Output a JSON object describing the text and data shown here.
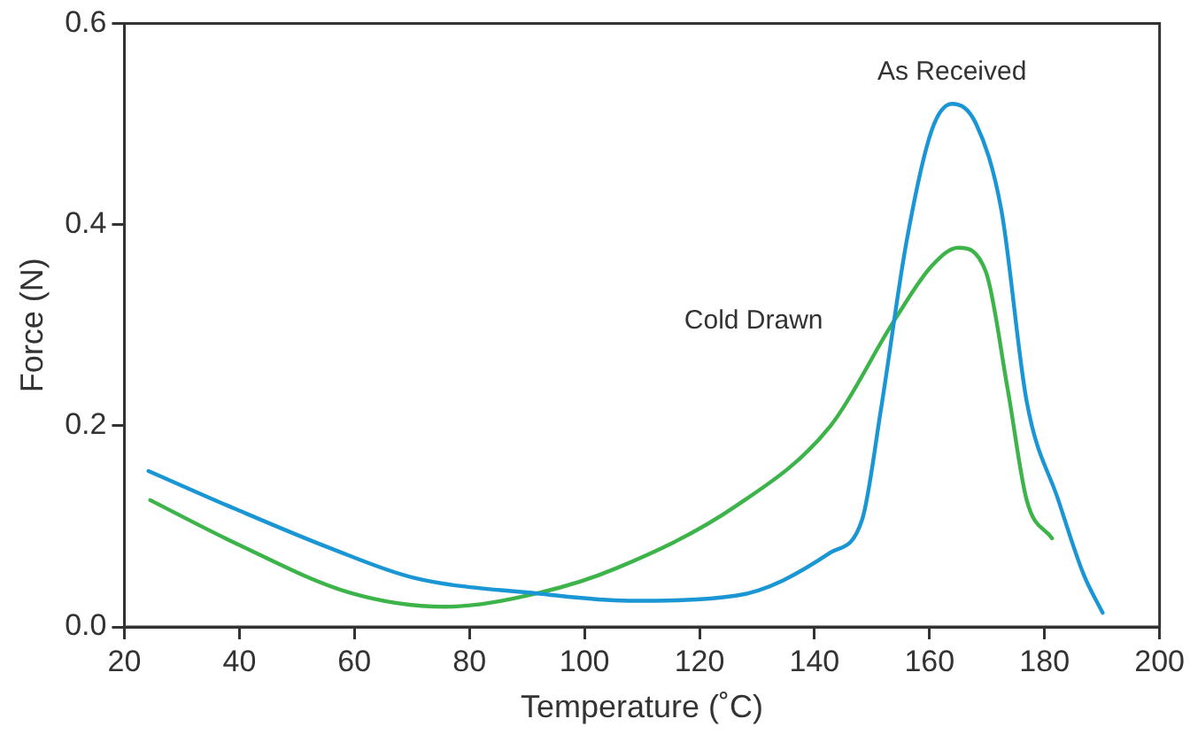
{
  "chart_data": {
    "type": "line",
    "xlabel": "Temperature (˚C)",
    "ylabel": "Force (N)",
    "xlim": [
      20,
      200
    ],
    "xticks": [
      20,
      40,
      60,
      80,
      100,
      120,
      140,
      160,
      180,
      200
    ],
    "ylim": [
      0,
      0.6
    ],
    "yticks": [
      {
        "value": 0,
        "label": "0.0"
      },
      {
        "value": 0.2,
        "label": "0.2"
      },
      {
        "value": 0.4,
        "label": "0.4"
      },
      {
        "value": 0.6,
        "label": "0.6"
      }
    ],
    "grid": false,
    "legend": false,
    "marker": "none",
    "line_style": "solid",
    "series": [
      {
        "name": "As Received",
        "color": "#1a96d4",
        "x": [
          24.2,
          39.4,
          55.9,
          70.2,
          92.2,
          107.6,
          126.3,
          142.8,
          148.3,
          151.6,
          156,
          160.4,
          163.9,
          168.1,
          172.5,
          176.9,
          182.4,
          186.8,
          190.1
        ],
        "values": [
          0.155,
          0.117,
          0.078,
          0.049,
          0.033,
          0.026,
          0.031,
          0.074,
          0.107,
          0.218,
          0.383,
          0.494,
          0.52,
          0.5,
          0.414,
          0.224,
          0.126,
          0.052,
          0.014
        ]
      },
      {
        "name": "Cold Drawn",
        "color": "#3cb44a",
        "x": [
          24.5,
          39.4,
          59.2,
          75.7,
          92.2,
          105.4,
          126.3,
          142.8,
          153.8,
          160.4,
          165,
          169.8,
          173.6,
          176.9,
          181.3
        ],
        "values": [
          0.126,
          0.083,
          0.034,
          0.02,
          0.034,
          0.058,
          0.12,
          0.2,
          0.304,
          0.359,
          0.377,
          0.353,
          0.236,
          0.126,
          0.088
        ]
      }
    ]
  }
}
